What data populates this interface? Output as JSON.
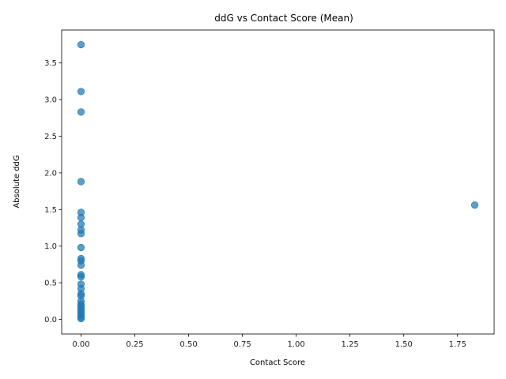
{
  "chart_data": {
    "type": "scatter",
    "title": "ddG vs Contact Score (Mean)",
    "xlabel": "Contact Score",
    "ylabel": "Absolute ddG",
    "xlim": [
      -0.09,
      1.92
    ],
    "ylim": [
      -0.2,
      3.95
    ],
    "xticks": [
      "0.00",
      "0.25",
      "0.50",
      "0.75",
      "1.00",
      "1.25",
      "1.50",
      "1.75"
    ],
    "xtick_values": [
      0,
      0.25,
      0.5,
      0.75,
      1.0,
      1.25,
      1.5,
      1.75
    ],
    "yticks": [
      "0.0",
      "0.5",
      "1.0",
      "1.5",
      "2.0",
      "2.5",
      "3.0",
      "3.5"
    ],
    "ytick_values": [
      0,
      0.5,
      1.0,
      1.5,
      2.0,
      2.5,
      3.0,
      3.5
    ],
    "grid": false,
    "marker_color": "#1f77b4",
    "points": [
      {
        "x": 0,
        "y": 3.75
      },
      {
        "x": 0,
        "y": 3.11
      },
      {
        "x": 0,
        "y": 2.83
      },
      {
        "x": 0,
        "y": 1.88
      },
      {
        "x": 0,
        "y": 1.46
      },
      {
        "x": 0,
        "y": 1.39
      },
      {
        "x": 0,
        "y": 1.3
      },
      {
        "x": 0,
        "y": 1.22
      },
      {
        "x": 0,
        "y": 1.17
      },
      {
        "x": 0,
        "y": 0.98
      },
      {
        "x": 0,
        "y": 0.83
      },
      {
        "x": 0,
        "y": 0.8
      },
      {
        "x": 0,
        "y": 0.74
      },
      {
        "x": 0,
        "y": 0.61
      },
      {
        "x": 0,
        "y": 0.58
      },
      {
        "x": 0,
        "y": 0.48
      },
      {
        "x": 0,
        "y": 0.42
      },
      {
        "x": 0,
        "y": 0.35
      },
      {
        "x": 0,
        "y": 0.32
      },
      {
        "x": 0,
        "y": 0.25
      },
      {
        "x": 0,
        "y": 0.21
      },
      {
        "x": 0,
        "y": 0.18
      },
      {
        "x": 0,
        "y": 0.15
      },
      {
        "x": 0,
        "y": 0.12
      },
      {
        "x": 0,
        "y": 0.09
      },
      {
        "x": 0,
        "y": 0.06
      },
      {
        "x": 0,
        "y": 0.03
      },
      {
        "x": 0,
        "y": 0.01
      },
      {
        "x": 1.83,
        "y": 1.56
      }
    ]
  }
}
